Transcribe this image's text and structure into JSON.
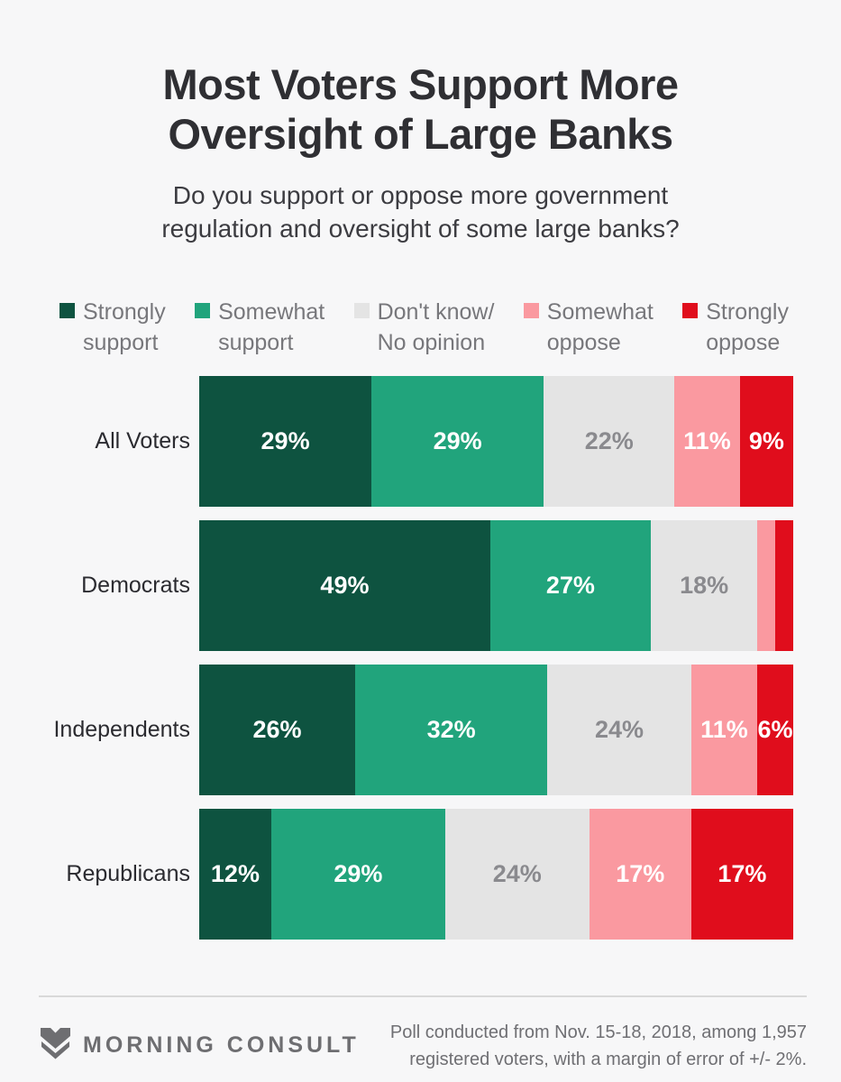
{
  "colors": {
    "background": "#f7f7f8",
    "strongly_support": "#0e5340",
    "somewhat_support": "#21a47c",
    "dont_know": "#e4e4e4",
    "somewhat_oppose": "#fa99a0",
    "strongly_oppose": "#e00d1c",
    "gray_label": "#8a8a8e",
    "white_label": "#ffffff"
  },
  "title": {
    "line1": "Most Voters Support More",
    "line2": "Oversight of Large Banks"
  },
  "subtitle": {
    "line1": "Do you support or oppose more government",
    "line2": "regulation and oversight of some large banks?"
  },
  "legend": {
    "items": [
      {
        "line1": "Strongly",
        "line2": "support",
        "color": "#0e5340"
      },
      {
        "line1": "Somewhat",
        "line2": "support",
        "color": "#21a47c"
      },
      {
        "line1": "Don't know/",
        "line2": "No opinion",
        "color": "#e4e4e4"
      },
      {
        "line1": "Somewhat",
        "line2": "oppose",
        "color": "#fa99a0"
      },
      {
        "line1": "Strongly",
        "line2": "oppose",
        "color": "#e00d1c"
      }
    ]
  },
  "chart_data": {
    "type": "bar",
    "stacked": true,
    "orientation": "horizontal",
    "unit": "%",
    "xlim": [
      0,
      100
    ],
    "grid": false,
    "legend_position": "top",
    "categories": [
      "All Voters",
      "Democrats",
      "Independents",
      "Republicans"
    ],
    "series": [
      {
        "name": "Strongly support",
        "color": "#0e5340",
        "label_color": "#ffffff",
        "values": [
          29,
          49,
          26,
          12
        ]
      },
      {
        "name": "Somewhat support",
        "color": "#21a47c",
        "label_color": "#ffffff",
        "values": [
          29,
          27,
          32,
          29
        ]
      },
      {
        "name": "Don't know/No opinion",
        "color": "#e4e4e4",
        "label_color": "#8a8a8e",
        "values": [
          22,
          18,
          24,
          24
        ]
      },
      {
        "name": "Somewhat oppose",
        "color": "#fa99a0",
        "label_color": "#ffffff",
        "values": [
          11,
          3,
          11,
          17
        ]
      },
      {
        "name": "Strongly oppose",
        "color": "#e00d1c",
        "label_color": "#ffffff",
        "values": [
          9,
          3,
          6,
          17
        ]
      }
    ],
    "value_labels": [
      [
        "29%",
        "29%",
        "22%",
        "11%",
        "9%"
      ],
      [
        "49%",
        "27%",
        "18%",
        "",
        ""
      ],
      [
        "26%",
        "32%",
        "24%",
        "11%",
        "6%"
      ],
      [
        "12%",
        "29%",
        "24%",
        "17%",
        "17%"
      ]
    ]
  },
  "footer": {
    "brand": "MORNING CONSULT",
    "note_line1": "Poll conducted from Nov. 15-18, 2018, among 1,957",
    "note_line2": "registered voters, with a margin of error of +/- 2%."
  }
}
